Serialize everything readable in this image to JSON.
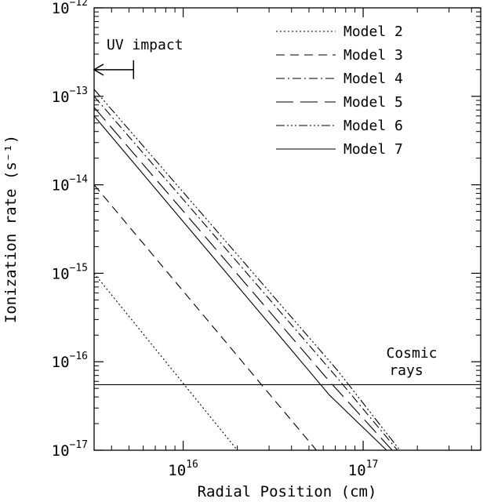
{
  "chart_data": {
    "type": "line",
    "xscale": "log",
    "yscale": "log",
    "xlim": [
      3200000000000000.0,
      4.5e+17
    ],
    "ylim": [
      1e-17,
      1e-12
    ],
    "xlabel": "Radial Position (cm)",
    "ylabel": "Ionization rate (s⁻¹)",
    "x_ticks": [
      {
        "base": "10",
        "exp": "16",
        "value": 1e+16
      },
      {
        "base": "10",
        "exp": "17",
        "value": 1e+17
      }
    ],
    "y_ticks": [
      {
        "base": "10",
        "exp": "−12",
        "value": 1e-12
      },
      {
        "base": "10",
        "exp": "−13",
        "value": 1e-13
      },
      {
        "base": "10",
        "exp": "−14",
        "value": 1e-14
      },
      {
        "base": "10",
        "exp": "−15",
        "value": 1e-15
      },
      {
        "base": "10",
        "exp": "−16",
        "value": 1e-16
      },
      {
        "base": "10",
        "exp": "−17",
        "value": 1e-17
      }
    ],
    "series": [
      {
        "name": "Model 2",
        "dash": "2,3",
        "x": [
          3200000000000000.0,
          2e+16
        ],
        "y": [
          1e-15,
          1e-17
        ]
      },
      {
        "name": "Model 3",
        "dash": "11,7",
        "x": [
          3200000000000000.0,
          5.5e+16
        ],
        "y": [
          1e-14,
          1e-17
        ]
      },
      {
        "name": "Model 4",
        "dash": "11,4,2,4",
        "x": [
          3200000000000000.0,
          7e+16,
          1.55e+17
        ],
        "y": [
          1e-13,
          7e-17,
          1e-17
        ]
      },
      {
        "name": "Model 5",
        "dash": "22,9",
        "x": [
          3200000000000000.0,
          6.5e+16,
          1.45e+17
        ],
        "y": [
          7.5e-14,
          6e-17,
          1e-17
        ]
      },
      {
        "name": "Model 6",
        "dash": "11,3,2,3,2,3,2,3",
        "x": [
          3200000000000000.0,
          7.2e+16,
          1.6e+17
        ],
        "y": [
          1.2e-13,
          8e-17,
          1e-17
        ]
      },
      {
        "name": "Model 7",
        "dash": "",
        "x": [
          3200000000000000.0,
          6.5e+16,
          1.35e+17
        ],
        "y": [
          6e-14,
          4.2e-17,
          1e-17
        ]
      }
    ],
    "reference_line": {
      "y": 5.5e-17,
      "label_lines": [
        "Cosmic",
        "rays"
      ]
    },
    "annotation": {
      "label": "UV impact",
      "x_start": 5300000000000000.0,
      "x_end": 3200000000000000.0,
      "y": 2e-13
    },
    "legend_position": "top-right",
    "grid": false
  }
}
